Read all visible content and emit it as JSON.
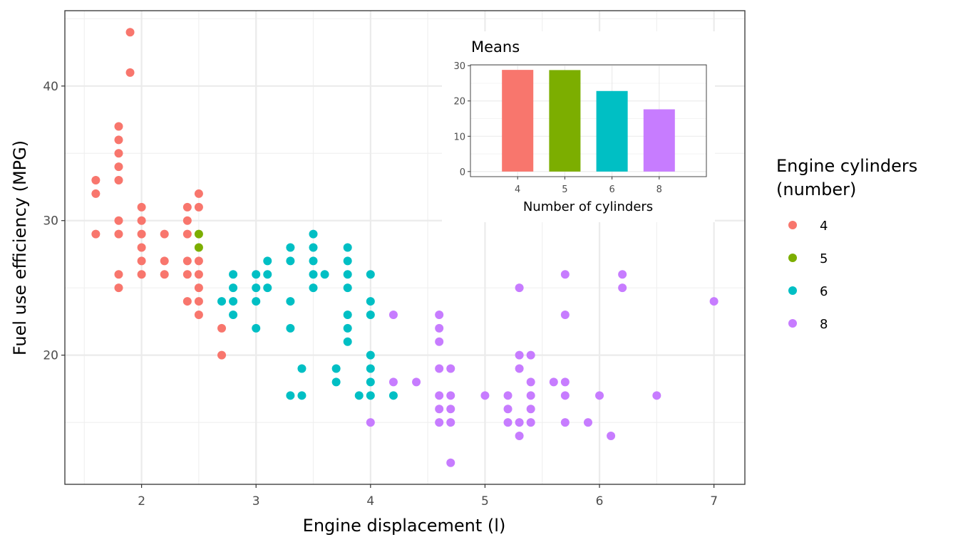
{
  "chart_data": [
    {
      "type": "scatter",
      "xlabel": "Engine displacement (l)",
      "ylabel": "Fuel use efficiency (MPG)",
      "xlim": [
        1.33,
        7.27
      ],
      "ylim": [
        10.4,
        45.6
      ],
      "x_ticks": [
        "2",
        "3",
        "4",
        "5",
        "6",
        "7"
      ],
      "y_ticks": [
        "20",
        "30",
        "40"
      ],
      "grid": true,
      "legend": {
        "title": "Engine cylinders\n(number)",
        "position": "right",
        "entries": [
          "4",
          "5",
          "6",
          "8"
        ]
      },
      "series": [
        {
          "name": "4",
          "color": "#F8766D",
          "points": [
            [
              1.6,
              33
            ],
            [
              1.6,
              32
            ],
            [
              1.6,
              29
            ],
            [
              1.8,
              37
            ],
            [
              1.8,
              36
            ],
            [
              1.8,
              35
            ],
            [
              1.8,
              34
            ],
            [
              1.8,
              33
            ],
            [
              1.8,
              30
            ],
            [
              1.8,
              29
            ],
            [
              1.8,
              26
            ],
            [
              1.8,
              25
            ],
            [
              1.9,
              44
            ],
            [
              1.9,
              41
            ],
            [
              2.0,
              31
            ],
            [
              2.0,
              30
            ],
            [
              2.0,
              29
            ],
            [
              2.0,
              28
            ],
            [
              2.0,
              27
            ],
            [
              2.0,
              26
            ],
            [
              2.2,
              29
            ],
            [
              2.2,
              27
            ],
            [
              2.2,
              26
            ],
            [
              2.4,
              31
            ],
            [
              2.4,
              30
            ],
            [
              2.4,
              29
            ],
            [
              2.4,
              27
            ],
            [
              2.4,
              26
            ],
            [
              2.4,
              24
            ],
            [
              2.5,
              32
            ],
            [
              2.5,
              31
            ],
            [
              2.5,
              27
            ],
            [
              2.5,
              26
            ],
            [
              2.5,
              25
            ],
            [
              2.5,
              24
            ],
            [
              2.5,
              23
            ],
            [
              2.7,
              22
            ],
            [
              2.7,
              20
            ]
          ]
        },
        {
          "name": "5",
          "color": "#7CAE00",
          "points": [
            [
              2.5,
              29
            ],
            [
              2.5,
              28
            ]
          ]
        },
        {
          "name": "6",
          "color": "#00BFC4",
          "points": [
            [
              2.7,
              24
            ],
            [
              2.8,
              26
            ],
            [
              2.8,
              25
            ],
            [
              2.8,
              24
            ],
            [
              2.8,
              23
            ],
            [
              3.0,
              26
            ],
            [
              3.0,
              25
            ],
            [
              3.0,
              24
            ],
            [
              3.0,
              22
            ],
            [
              3.1,
              27
            ],
            [
              3.1,
              26
            ],
            [
              3.1,
              25
            ],
            [
              3.3,
              28
            ],
            [
              3.3,
              27
            ],
            [
              3.3,
              24
            ],
            [
              3.3,
              22
            ],
            [
              3.3,
              17
            ],
            [
              3.4,
              19
            ],
            [
              3.4,
              17
            ],
            [
              3.5,
              29
            ],
            [
              3.5,
              28
            ],
            [
              3.5,
              27
            ],
            [
              3.5,
              26
            ],
            [
              3.5,
              25
            ],
            [
              3.6,
              26
            ],
            [
              3.7,
              19
            ],
            [
              3.7,
              18
            ],
            [
              3.8,
              28
            ],
            [
              3.8,
              27
            ],
            [
              3.8,
              26
            ],
            [
              3.8,
              25
            ],
            [
              3.8,
              23
            ],
            [
              3.8,
              22
            ],
            [
              3.8,
              21
            ],
            [
              3.9,
              17
            ],
            [
              4.0,
              26
            ],
            [
              4.0,
              24
            ],
            [
              4.0,
              23
            ],
            [
              4.0,
              20
            ],
            [
              4.0,
              19
            ],
            [
              4.0,
              18
            ],
            [
              4.0,
              17
            ],
            [
              4.2,
              17
            ]
          ]
        },
        {
          "name": "8",
          "color": "#C77CFF",
          "points": [
            [
              4.0,
              15
            ],
            [
              4.2,
              23
            ],
            [
              4.2,
              18
            ],
            [
              4.4,
              18
            ],
            [
              4.6,
              23
            ],
            [
              4.6,
              22
            ],
            [
              4.6,
              21
            ],
            [
              4.6,
              19
            ],
            [
              4.6,
              17
            ],
            [
              4.6,
              16
            ],
            [
              4.6,
              15
            ],
            [
              4.7,
              19
            ],
            [
              4.7,
              17
            ],
            [
              4.7,
              16
            ],
            [
              4.7,
              15
            ],
            [
              4.7,
              12
            ],
            [
              5.0,
              17
            ],
            [
              5.2,
              17
            ],
            [
              5.2,
              16
            ],
            [
              5.2,
              15
            ],
            [
              5.3,
              25
            ],
            [
              5.3,
              20
            ],
            [
              5.3,
              19
            ],
            [
              5.3,
              15
            ],
            [
              5.3,
              14
            ],
            [
              5.4,
              20
            ],
            [
              5.4,
              18
            ],
            [
              5.4,
              17
            ],
            [
              5.4,
              16
            ],
            [
              5.4,
              15
            ],
            [
              5.6,
              18
            ],
            [
              5.7,
              26
            ],
            [
              5.7,
              23
            ],
            [
              5.7,
              18
            ],
            [
              5.7,
              17
            ],
            [
              5.7,
              15
            ],
            [
              5.9,
              15
            ],
            [
              6.0,
              17
            ],
            [
              6.1,
              14
            ],
            [
              6.2,
              26
            ],
            [
              6.2,
              25
            ],
            [
              6.5,
              17
            ],
            [
              7.0,
              24
            ]
          ]
        }
      ]
    },
    {
      "type": "bar",
      "title": "Means",
      "xlabel": "Number of cylinders",
      "ylabel": "",
      "categories": [
        "4",
        "5",
        "6",
        "8"
      ],
      "values": [
        28.8,
        28.75,
        22.82,
        17.63
      ],
      "colors": [
        "#F8766D",
        "#7CAE00",
        "#00BFC4",
        "#C77CFF"
      ],
      "ylim": [
        -1.44,
        30.24
      ],
      "y_ticks": [
        "0",
        "10",
        "20",
        "30"
      ],
      "grid": true
    }
  ]
}
